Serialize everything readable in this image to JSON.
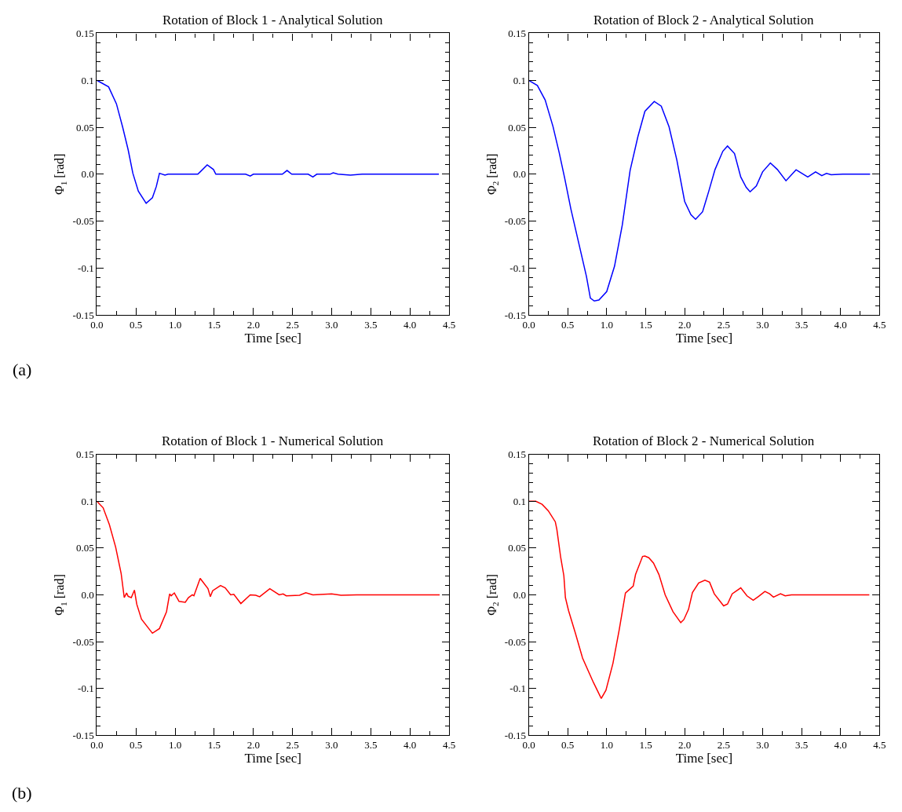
{
  "chart_data": [
    {
      "type": "line",
      "title": "Rotation of Block 1 - Analytical Solution",
      "xlabel": "Time [sec]",
      "ylabel": "Φ$_{1}$ [rad]",
      "xlim": [
        0,
        4.5
      ],
      "ylim": [
        -0.15,
        0.15
      ],
      "xticks": [
        {
          "value": 0,
          "label": "0.0"
        },
        0.5,
        {
          "value": 1,
          "label": "1.0"
        },
        1.5,
        {
          "value": 2,
          "label": "2.0"
        },
        2.5,
        {
          "value": 3,
          "label": "3.0"
        },
        3.5,
        {
          "value": 4,
          "label": "4.0"
        },
        4.5,
        {
          "value": 0.25,
          "label": null
        },
        {
          "value": 0.75,
          "label": null
        },
        {
          "value": 1.25,
          "label": null
        },
        {
          "value": 1.75,
          "label": null
        },
        {
          "value": 2.25,
          "label": null
        },
        {
          "value": 2.75,
          "label": null
        },
        {
          "value": 3.25,
          "label": null
        },
        {
          "value": 3.75,
          "label": null
        },
        {
          "value": 4.25,
          "label": null
        }
      ],
      "yticks": [
        -0.15,
        -0.1,
        -0.05,
        {
          "value": 0,
          "label": "0.0"
        },
        0.05,
        0.1,
        0.15,
        {
          "value": -0.14,
          "label": null
        },
        {
          "value": -0.13,
          "label": null
        },
        {
          "value": -0.12,
          "label": null
        },
        {
          "value": -0.11,
          "label": null
        },
        {
          "value": -0.09,
          "label": null
        },
        {
          "value": -0.08,
          "label": null
        },
        {
          "value": -0.07,
          "label": null
        },
        {
          "value": -0.06,
          "label": null
        },
        {
          "value": -0.04,
          "label": null
        },
        {
          "value": -0.03,
          "label": null
        },
        {
          "value": -0.02,
          "label": null
        },
        {
          "value": -0.01,
          "label": null
        },
        {
          "value": 0.01,
          "label": null
        },
        {
          "value": 0.02,
          "label": null
        },
        {
          "value": 0.03,
          "label": null
        },
        {
          "value": 0.04,
          "label": null
        },
        {
          "value": 0.06,
          "label": null
        },
        {
          "value": 0.07,
          "label": null
        },
        {
          "value": 0.08,
          "label": null
        },
        {
          "value": 0.09,
          "label": null
        },
        {
          "value": 0.11,
          "label": null
        },
        {
          "value": 0.12,
          "label": null
        },
        {
          "value": 0.13,
          "label": null
        },
        {
          "value": 0.14,
          "label": null
        }
      ],
      "series": [
        {
          "color": "#0000ff",
          "x": [
            0,
            0.15,
            0.25,
            0.33,
            0.4,
            0.46,
            0.53,
            0.63,
            0.71,
            0.76,
            0.8,
            0.87,
            0.91,
            1.29,
            1.41,
            1.49,
            1.52,
            1.9,
            1.96,
            2.0,
            2.37,
            2.43,
            2.49,
            2.7,
            2.76,
            2.81,
            2.98,
            3.02,
            3.08,
            3.24,
            3.39,
            3.89,
            4.37
          ],
          "values": [
            0.1,
            0.093,
            0.075,
            0.05,
            0.026,
            0.001,
            -0.018,
            -0.031,
            -0.025,
            -0.013,
            0.001,
            -0.001,
            0,
            0,
            0.01,
            0.005,
            0,
            0,
            -0.002,
            0,
            0,
            0.004,
            0,
            0,
            -0.003,
            0,
            0,
            0.0015,
            0,
            -0.001,
            0,
            0,
            0
          ]
        }
      ]
    },
    {
      "type": "line",
      "title": "Rotation of Block 2 - Analytical Solution",
      "xlabel": "Time [sec]",
      "ylabel": "Φ$_{2}$ [rad]",
      "xlim": [
        0,
        4.5
      ],
      "ylim": [
        -0.15,
        0.15
      ],
      "xticks": [
        {
          "value": 0,
          "label": "0.0"
        },
        0.5,
        {
          "value": 1,
          "label": "1.0"
        },
        1.5,
        {
          "value": 2,
          "label": "2.0"
        },
        2.5,
        {
          "value": 3,
          "label": "3.0"
        },
        3.5,
        {
          "value": 4,
          "label": "4.0"
        },
        4.5,
        {
          "value": 0.25,
          "label": null
        },
        {
          "value": 0.75,
          "label": null
        },
        {
          "value": 1.25,
          "label": null
        },
        {
          "value": 1.75,
          "label": null
        },
        {
          "value": 2.25,
          "label": null
        },
        {
          "value": 2.75,
          "label": null
        },
        {
          "value": 3.25,
          "label": null
        },
        {
          "value": 3.75,
          "label": null
        },
        {
          "value": 4.25,
          "label": null
        }
      ],
      "yticks": [
        -0.15,
        -0.1,
        -0.05,
        {
          "value": 0,
          "label": "0.0"
        },
        0.05,
        0.1,
        0.15,
        {
          "value": -0.14,
          "label": null
        },
        {
          "value": -0.13,
          "label": null
        },
        {
          "value": -0.12,
          "label": null
        },
        {
          "value": -0.11,
          "label": null
        },
        {
          "value": -0.09,
          "label": null
        },
        {
          "value": -0.08,
          "label": null
        },
        {
          "value": -0.07,
          "label": null
        },
        {
          "value": -0.06,
          "label": null
        },
        {
          "value": -0.04,
          "label": null
        },
        {
          "value": -0.03,
          "label": null
        },
        {
          "value": -0.02,
          "label": null
        },
        {
          "value": -0.01,
          "label": null
        },
        {
          "value": 0.01,
          "label": null
        },
        {
          "value": 0.02,
          "label": null
        },
        {
          "value": 0.03,
          "label": null
        },
        {
          "value": 0.04,
          "label": null
        },
        {
          "value": 0.06,
          "label": null
        },
        {
          "value": 0.07,
          "label": null
        },
        {
          "value": 0.08,
          "label": null
        },
        {
          "value": 0.09,
          "label": null
        },
        {
          "value": 0.11,
          "label": null
        },
        {
          "value": 0.12,
          "label": null
        },
        {
          "value": 0.13,
          "label": null
        },
        {
          "value": 0.14,
          "label": null
        }
      ],
      "series": [
        {
          "color": "#0000ff",
          "x": [
            0,
            0.11,
            0.21,
            0.31,
            0.39,
            0.46,
            0.54,
            0.64,
            0.74,
            0.79,
            0.84,
            0.9,
            1.0,
            1.1,
            1.2,
            1.3,
            1.4,
            1.49,
            1.61,
            1.7,
            1.8,
            1.9,
            2.0,
            2.08,
            2.14,
            2.23,
            2.31,
            2.39,
            2.49,
            2.55,
            2.64,
            2.72,
            2.79,
            2.84,
            2.92,
            3.0,
            3.1,
            3.19,
            3.3,
            3.43,
            3.58,
            3.68,
            3.76,
            3.82,
            3.88,
            4.03,
            4.38
          ],
          "values": [
            0.1,
            0.0945,
            0.079,
            0.051,
            0.023,
            -0.004,
            -0.037,
            -0.073,
            -0.109,
            -0.132,
            -0.135,
            -0.134,
            -0.125,
            -0.098,
            -0.054,
            0.004,
            0.04,
            0.067,
            0.0775,
            0.0725,
            0.0505,
            0.015,
            -0.029,
            -0.043,
            -0.048,
            -0.04,
            -0.018,
            0.005,
            0.0245,
            0.03,
            0.022,
            -0.003,
            -0.014,
            -0.0187,
            -0.0126,
            0.0025,
            0.012,
            0.005,
            -0.007,
            0.0047,
            -0.003,
            0.0025,
            -0.0016,
            0.0008,
            -0.0005,
            0,
            0
          ]
        }
      ],
      "annotations": [
        "(a)"
      ]
    },
    {
      "type": "line",
      "title": "Rotation of Block 1 - Numerical Solution",
      "xlabel": "Time [sec]",
      "ylabel": "Φ$_{1}$ [rad]",
      "xlim": [
        0,
        4.5
      ],
      "ylim": [
        -0.15,
        0.15
      ],
      "xticks": [
        {
          "value": 0,
          "label": "0.0"
        },
        0.5,
        {
          "value": 1,
          "label": "1.0"
        },
        1.5,
        {
          "value": 2,
          "label": "2.0"
        },
        2.5,
        {
          "value": 3,
          "label": "3.0"
        },
        3.5,
        {
          "value": 4,
          "label": "4.0"
        },
        4.5,
        {
          "value": 0.25,
          "label": null
        },
        {
          "value": 0.75,
          "label": null
        },
        {
          "value": 1.25,
          "label": null
        },
        {
          "value": 1.75,
          "label": null
        },
        {
          "value": 2.25,
          "label": null
        },
        {
          "value": 2.75,
          "label": null
        },
        {
          "value": 3.25,
          "label": null
        },
        {
          "value": 3.75,
          "label": null
        },
        {
          "value": 4.25,
          "label": null
        }
      ],
      "yticks": [
        -0.15,
        -0.1,
        -0.05,
        {
          "value": 0,
          "label": "0.0"
        },
        0.05,
        0.1,
        0.15,
        {
          "value": -0.14,
          "label": null
        },
        {
          "value": -0.13,
          "label": null
        },
        {
          "value": -0.12,
          "label": null
        },
        {
          "value": -0.11,
          "label": null
        },
        {
          "value": -0.09,
          "label": null
        },
        {
          "value": -0.08,
          "label": null
        },
        {
          "value": -0.07,
          "label": null
        },
        {
          "value": -0.06,
          "label": null
        },
        {
          "value": -0.04,
          "label": null
        },
        {
          "value": -0.03,
          "label": null
        },
        {
          "value": -0.02,
          "label": null
        },
        {
          "value": -0.01,
          "label": null
        },
        {
          "value": 0.01,
          "label": null
        },
        {
          "value": 0.02,
          "label": null
        },
        {
          "value": 0.03,
          "label": null
        },
        {
          "value": 0.04,
          "label": null
        },
        {
          "value": 0.06,
          "label": null
        },
        {
          "value": 0.07,
          "label": null
        },
        {
          "value": 0.08,
          "label": null
        },
        {
          "value": 0.09,
          "label": null
        },
        {
          "value": 0.11,
          "label": null
        },
        {
          "value": 0.12,
          "label": null
        },
        {
          "value": 0.13,
          "label": null
        },
        {
          "value": 0.14,
          "label": null
        }
      ],
      "series": [
        {
          "color": "#ff0000",
          "x": [
            0,
            0.08,
            0.16,
            0.24,
            0.31,
            0.35,
            0.38,
            0.4,
            0.44,
            0.48,
            0.51,
            0.57,
            0.71,
            0.8,
            0.89,
            0.93,
            0.95,
            0.99,
            1.05,
            1.13,
            1.17,
            1.22,
            1.24,
            1.32,
            1.42,
            1.45,
            1.48,
            1.58,
            1.64,
            1.71,
            1.75,
            1.84,
            1.96,
            2.03,
            2.08,
            2.21,
            2.33,
            2.38,
            2.42,
            2.59,
            2.67,
            2.76,
            3.0,
            3.12,
            3.32,
            4.38
          ],
          "values": [
            0.1,
            0.093,
            0.075,
            0.051,
            0.023,
            -0.003,
            0.002,
            -0.0016,
            -0.003,
            0.005,
            -0.01,
            -0.026,
            -0.041,
            -0.036,
            -0.018,
            0.001,
            -0.001,
            0.002,
            -0.007,
            -0.008,
            -0.003,
            0,
            -0.001,
            0.0176,
            0.0066,
            -0.002,
            0.0044,
            0.0099,
            0.0074,
            0,
            0.0005,
            -0.0093,
            0,
            -0.0005,
            -0.002,
            0.0066,
            0,
            0.001,
            -0.001,
            -0.0005,
            0.0022,
            0,
            0.001,
            -0.0005,
            0,
            0
          ]
        }
      ]
    },
    {
      "type": "line",
      "title": "Rotation of Block 2 - Numerical Solution",
      "xlabel": "Time [sec]",
      "ylabel": "Φ$_{2}$ [rad]",
      "xlim": [
        0,
        4.5
      ],
      "ylim": [
        -0.15,
        0.15
      ],
      "xticks": [
        {
          "value": 0,
          "label": "0.0"
        },
        0.5,
        {
          "value": 1,
          "label": "1.0"
        },
        1.5,
        {
          "value": 2,
          "label": "2.0"
        },
        2.5,
        {
          "value": 3,
          "label": "3.0"
        },
        3.5,
        {
          "value": 4,
          "label": "4.0"
        },
        4.5,
        {
          "value": 0.25,
          "label": null
        },
        {
          "value": 0.75,
          "label": null
        },
        {
          "value": 1.25,
          "label": null
        },
        {
          "value": 1.75,
          "label": null
        },
        {
          "value": 2.25,
          "label": null
        },
        {
          "value": 2.75,
          "label": null
        },
        {
          "value": 3.25,
          "label": null
        },
        {
          "value": 3.75,
          "label": null
        },
        {
          "value": 4.25,
          "label": null
        }
      ],
      "yticks": [
        -0.15,
        -0.1,
        -0.05,
        {
          "value": 0,
          "label": "0.0"
        },
        0.05,
        0.1,
        0.15,
        {
          "value": -0.14,
          "label": null
        },
        {
          "value": -0.13,
          "label": null
        },
        {
          "value": -0.12,
          "label": null
        },
        {
          "value": -0.11,
          "label": null
        },
        {
          "value": -0.09,
          "label": null
        },
        {
          "value": -0.08,
          "label": null
        },
        {
          "value": -0.07,
          "label": null
        },
        {
          "value": -0.06,
          "label": null
        },
        {
          "value": -0.04,
          "label": null
        },
        {
          "value": -0.03,
          "label": null
        },
        {
          "value": -0.02,
          "label": null
        },
        {
          "value": -0.01,
          "label": null
        },
        {
          "value": 0.01,
          "label": null
        },
        {
          "value": 0.02,
          "label": null
        },
        {
          "value": 0.03,
          "label": null
        },
        {
          "value": 0.04,
          "label": null
        },
        {
          "value": 0.06,
          "label": null
        },
        {
          "value": 0.07,
          "label": null
        },
        {
          "value": 0.08,
          "label": null
        },
        {
          "value": 0.09,
          "label": null
        },
        {
          "value": 0.11,
          "label": null
        },
        {
          "value": 0.12,
          "label": null
        },
        {
          "value": 0.13,
          "label": null
        },
        {
          "value": 0.14,
          "label": null
        }
      ],
      "series": [
        {
          "color": "#ff0000",
          "x": [
            0,
            0.09,
            0.17,
            0.25,
            0.34,
            0.36,
            0.41,
            0.45,
            0.47,
            0.51,
            0.6,
            0.69,
            0.83,
            0.93,
            0.99,
            1.08,
            1.16,
            1.24,
            1.34,
            1.37,
            1.46,
            1.49,
            1.54,
            1.6,
            1.67,
            1.75,
            1.85,
            1.95,
            1.99,
            2.05,
            2.1,
            2.18,
            2.26,
            2.32,
            2.38,
            2.5,
            2.55,
            2.61,
            2.72,
            2.8,
            2.88,
            2.95,
            3.03,
            3.09,
            3.14,
            3.23,
            3.29,
            3.37,
            4.37
          ],
          "values": [
            0.1,
            0.1,
            0.0967,
            0.0898,
            0.078,
            0.0698,
            0.0396,
            0.0203,
            -0.003,
            -0.0168,
            -0.0415,
            -0.0676,
            -0.0937,
            -0.1107,
            -0.1019,
            -0.0731,
            -0.0374,
            0.0019,
            0.0093,
            0.0217,
            0.041,
            0.0415,
            0.0396,
            0.034,
            0.0217,
            0,
            -0.018,
            -0.0297,
            -0.0264,
            -0.0154,
            0.0025,
            0.0126,
            0.0157,
            0.0135,
            0.0011,
            -0.0118,
            -0.0099,
            0.0011,
            0.0074,
            -0.0011,
            -0.0058,
            -0.0016,
            0.0036,
            0.0011,
            -0.0025,
            0.0011,
            -0.0011,
            0,
            0
          ]
        }
      ],
      "annotations": [
        "(b)"
      ]
    }
  ]
}
